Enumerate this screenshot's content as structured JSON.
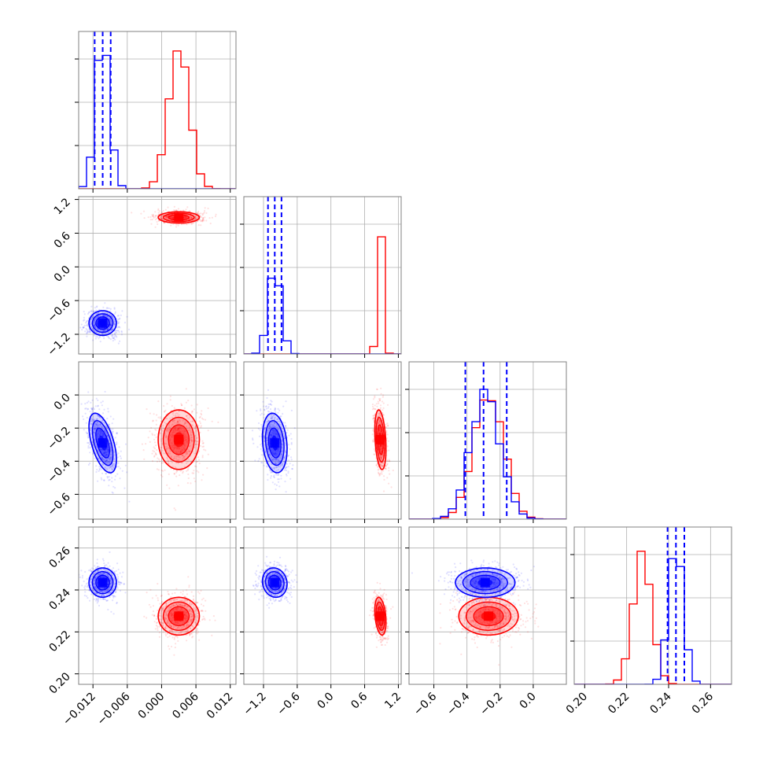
{
  "colors": {
    "series_a": "#0000ff",
    "series_b": "#ff0000",
    "grid": "#b0b0b0",
    "frame": "#808080"
  },
  "chart_data": {
    "type": "corner",
    "grid": true,
    "series": [
      {
        "color": "#0000ff",
        "quantiles_dashed": true
      },
      {
        "color": "#ff0000",
        "quantiles_dashed": false
      }
    ],
    "params": [
      {
        "range": [
          -0.0145,
          0.013
        ],
        "ticks": [
          -0.012,
          -0.006,
          0.0,
          0.006,
          0.012
        ],
        "tick_labels": [
          "−0.012",
          "−0.006",
          "0.000",
          "0.006",
          "0.012"
        ]
      },
      {
        "range": [
          -1.55,
          1.25
        ],
        "ticks": [
          -1.2,
          -0.6,
          0.0,
          0.6,
          1.2
        ],
        "tick_labels": [
          "−1.2",
          "−0.6",
          "0.0",
          "0.6",
          "1.2"
        ]
      },
      {
        "range": [
          -0.75,
          0.2
        ],
        "ticks": [
          -0.6,
          -0.4,
          -0.2,
          0.0
        ],
        "tick_labels": [
          "−0.6",
          "−0.4",
          "−0.2",
          "0.0"
        ]
      },
      {
        "range": [
          0.195,
          0.27
        ],
        "ticks": [
          0.2,
          0.22,
          0.24,
          0.26
        ],
        "tick_labels": [
          "0.20",
          "0.22",
          "0.24",
          "0.26"
        ]
      }
    ],
    "blue": {
      "mean": [
        -0.0103,
        -1.0,
        -0.29,
        0.2435
      ],
      "std": [
        0.0012,
        0.11,
        0.09,
        0.0035
      ],
      "quantiles": [
        [
          -0.0117,
          -0.0103,
          -0.0089
        ],
        [
          -1.12,
          -1.0,
          -0.88
        ],
        [
          -0.41,
          -0.3,
          -0.16
        ],
        [
          0.2395,
          0.2435,
          0.2475
        ]
      ],
      "correlations": {
        "0-2": -0.55,
        "1-2": -0.2,
        "0-3": 0.0,
        "1-3": -0.1,
        "2-3": 0.0
      }
    },
    "red": {
      "mean": [
        0.003,
        0.88,
        -0.27,
        0.2275
      ],
      "std": [
        0.0018,
        0.05,
        0.09,
        0.0045
      ],
      "correlations": {
        "1-2": -0.3,
        "1-3": -0.3,
        "2-3": 0.0
      }
    }
  }
}
